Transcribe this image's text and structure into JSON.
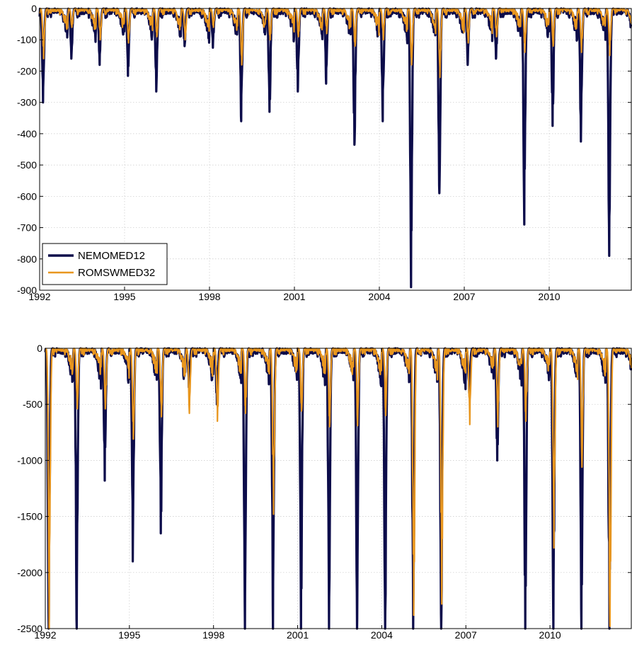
{
  "chart_data": [
    {
      "type": "line",
      "title": "",
      "xlabel": "",
      "ylabel": "",
      "xlim": [
        1992.0,
        2012.9
      ],
      "ylim": [
        -900,
        0
      ],
      "xticks": [
        1992,
        1995,
        1998,
        2001,
        2004,
        2007,
        2010
      ],
      "xtick_labels": [
        "1992",
        "1995",
        "1998",
        "2001",
        "2004",
        "2007",
        "2010"
      ],
      "yticks": [
        0,
        -100,
        -200,
        -300,
        -400,
        -500,
        -600,
        -700,
        -800,
        -900
      ],
      "ytick_labels": [
        "0",
        "-100",
        "-200",
        "-300",
        "-400",
        "-500",
        "-600",
        "-700",
        "-800",
        "-900"
      ],
      "grid": true,
      "legend": {
        "position": "bottom-left",
        "entries": [
          "NEMOMED12",
          "ROMSWMED32"
        ]
      },
      "series": [
        {
          "name": "NEMOMED12",
          "color": "#0c0c4a",
          "winter_minima_by_year": [
            -300,
            -160,
            -180,
            -215,
            -265,
            -120,
            -125,
            -360,
            -330,
            -265,
            -240,
            -435,
            -360,
            -890,
            -590,
            -180,
            -160,
            -690,
            -375,
            -425,
            -790
          ],
          "year_start": 1992
        },
        {
          "name": "ROMSWMED32",
          "color": "#e8961e",
          "winter_minima_by_year": [
            -160,
            -60,
            -100,
            -110,
            -90,
            -100,
            -60,
            -180,
            -100,
            -90,
            -80,
            -120,
            -100,
            -180,
            -220,
            -110,
            -90,
            -140,
            -120,
            -140,
            -150
          ],
          "year_start": 1992
        }
      ]
    },
    {
      "type": "line",
      "title": "",
      "xlabel": "",
      "ylabel": "",
      "xlim": [
        1992.0,
        2012.9
      ],
      "ylim": [
        -2500,
        0
      ],
      "xticks": [
        1992,
        1995,
        1998,
        2001,
        2004,
        2007,
        2010
      ],
      "xtick_labels": [
        "1992",
        "1995",
        "1998",
        "2001",
        "2004",
        "2007",
        "2010"
      ],
      "yticks": [
        0,
        -500,
        -1000,
        -1500,
        -2000,
        -2500
      ],
      "ytick_labels": [
        "0",
        "-500",
        "-1000",
        "-1500",
        "-2000",
        "-2500"
      ],
      "grid": true,
      "series": [
        {
          "name": "NEMOMED12",
          "color": "#0c0c4a",
          "winter_minima_by_year": [
            -2500,
            -2500,
            -1180,
            -1900,
            -1650,
            -350,
            -500,
            -2500,
            -2500,
            -2500,
            -2500,
            -2500,
            -2500,
            -2500,
            -2500,
            -400,
            -1000,
            -2500,
            -2500,
            -2500,
            -2500
          ],
          "year_start": 1992
        },
        {
          "name": "ROMSWMED32",
          "color": "#e8961e",
          "winter_minima_by_year": [
            -2500,
            -540,
            -540,
            -810,
            -610,
            -580,
            -650,
            -580,
            -1480,
            -560,
            -700,
            -690,
            -600,
            -2380,
            -2280,
            -680,
            -700,
            -650,
            -1780,
            -1060,
            -2480
          ],
          "year_start": 1992
        }
      ]
    }
  ]
}
